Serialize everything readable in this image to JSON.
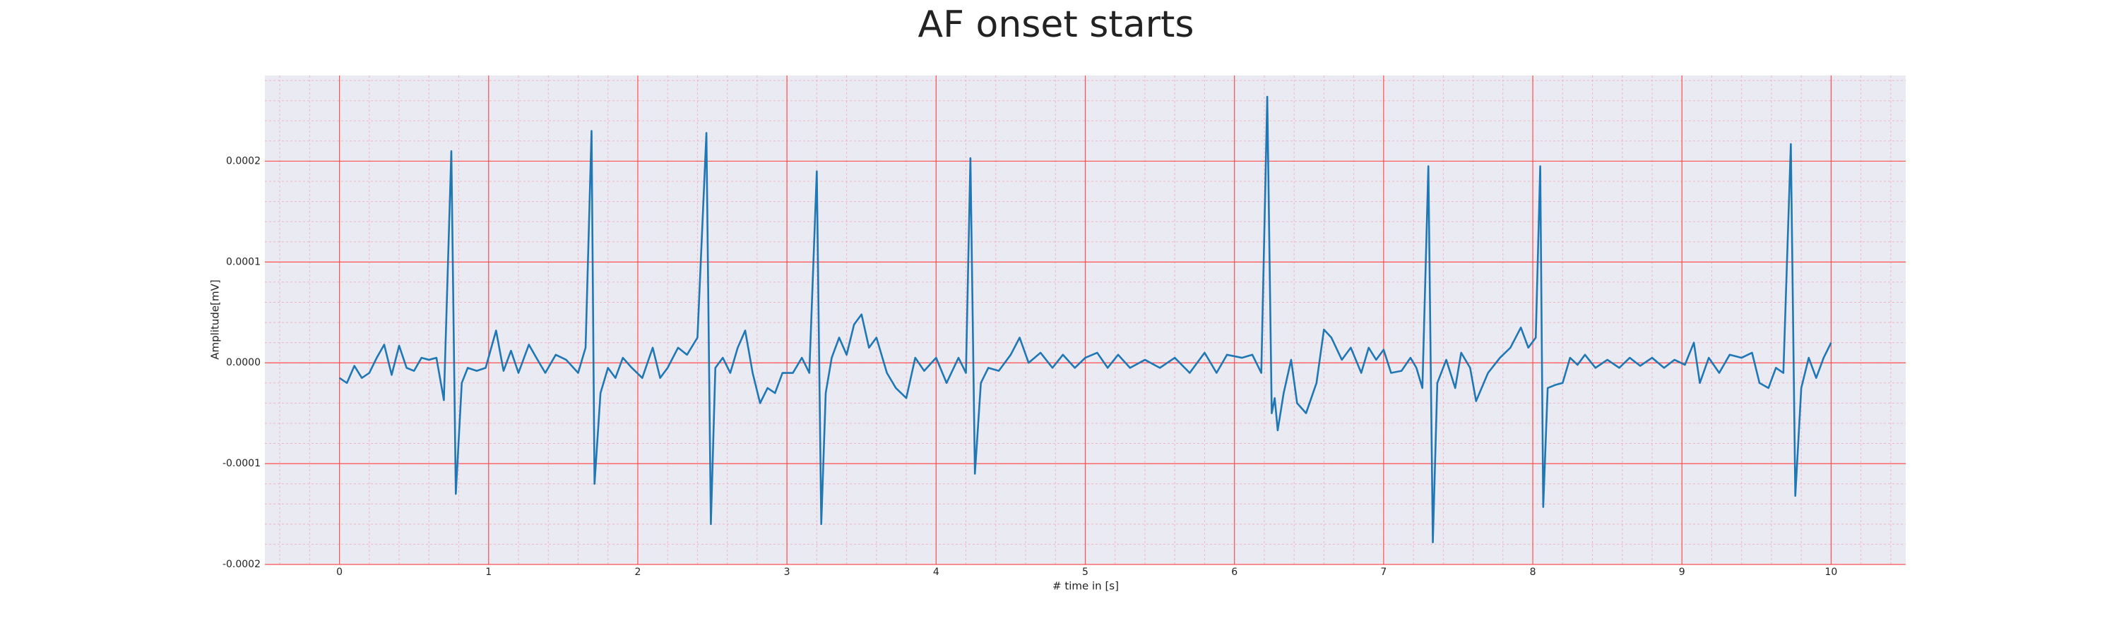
{
  "chart_data": {
    "type": "line",
    "title": "AF onset starts",
    "x_label": "# time in [s]",
    "y_label": "Amplitude[mV]",
    "color": "#1f77b4",
    "grid": true,
    "minor_grid": true,
    "xlim": [
      -0.5,
      10.5
    ],
    "ylim": [
      -0.0002,
      0.000285
    ],
    "xticks": [
      0,
      1,
      2,
      3,
      4,
      5,
      6,
      7,
      8,
      9,
      10
    ],
    "yticks": [
      -0.0002,
      -0.0001,
      {
        "value": 0,
        "label": "0.0000"
      },
      0.0001,
      0.0002
    ],
    "x": [
      0,
      0.05,
      0.1,
      0.15,
      0.2,
      0.25,
      0.3,
      0.35,
      0.4,
      0.45,
      0.5,
      0.55,
      0.6,
      0.65,
      0.7,
      0.75,
      0.78,
      0.82,
      0.86,
      0.92,
      0.98,
      1.05,
      1.1,
      1.15,
      1.2,
      1.27,
      1.32,
      1.38,
      1.45,
      1.52,
      1.6,
      1.65,
      1.69,
      1.71,
      1.75,
      1.8,
      1.85,
      1.9,
      1.96,
      2.03,
      2.1,
      2.15,
      2.2,
      2.27,
      2.33,
      2.4,
      2.46,
      2.49,
      2.52,
      2.57,
      2.62,
      2.67,
      2.72,
      2.77,
      2.82,
      2.87,
      2.92,
      2.97,
      3.04,
      3.1,
      3.15,
      3.2,
      3.23,
      3.26,
      3.3,
      3.35,
      3.4,
      3.45,
      3.5,
      3.55,
      3.6,
      3.67,
      3.73,
      3.8,
      3.86,
      3.92,
      4.0,
      4.07,
      4.15,
      4.2,
      4.23,
      4.26,
      4.3,
      4.35,
      4.42,
      4.5,
      4.56,
      4.62,
      4.7,
      4.78,
      4.85,
      4.93,
      5.0,
      5.08,
      5.15,
      5.22,
      5.3,
      5.4,
      5.5,
      5.6,
      5.7,
      5.8,
      5.88,
      5.95,
      6.05,
      6.12,
      6.18,
      6.22,
      6.25,
      6.27,
      6.29,
      6.33,
      6.38,
      6.42,
      6.48,
      6.55,
      6.6,
      6.65,
      6.72,
      6.78,
      6.85,
      6.9,
      6.95,
      7.0,
      7.05,
      7.12,
      7.18,
      7.22,
      7.26,
      7.3,
      7.33,
      7.36,
      7.42,
      7.48,
      7.52,
      7.58,
      7.62,
      7.7,
      7.78,
      7.85,
      7.92,
      7.97,
      8.02,
      8.05,
      8.07,
      8.1,
      8.15,
      8.2,
      8.25,
      8.3,
      8.35,
      8.42,
      8.5,
      8.58,
      8.65,
      8.72,
      8.8,
      8.88,
      8.95,
      9.02,
      9.08,
      9.12,
      9.18,
      9.25,
      9.32,
      9.4,
      9.47,
      9.52,
      9.58,
      9.63,
      9.68,
      9.73,
      9.76,
      9.8,
      9.85,
      9.9,
      9.95,
      10.0
    ],
    "values": [
      -1.5e-05,
      -2e-05,
      -3e-06,
      -1.5e-05,
      -1e-05,
      5e-06,
      1.8e-05,
      -1.2e-05,
      1.7e-05,
      -5e-06,
      -8e-06,
      5e-06,
      3e-06,
      5e-06,
      -3.7e-05,
      0.00021,
      -0.00013,
      -2e-05,
      -5e-06,
      -8e-06,
      -5e-06,
      3.2e-05,
      -8e-06,
      1.2e-05,
      -1e-05,
      1.8e-05,
      5e-06,
      -1e-05,
      8e-06,
      3e-06,
      -1e-05,
      1.5e-05,
      0.00023,
      -0.00012,
      -3e-05,
      -5e-06,
      -1.5e-05,
      5e-06,
      -5e-06,
      -1.5e-05,
      1.5e-05,
      -1.5e-05,
      -5e-06,
      1.5e-05,
      8e-06,
      2.5e-05,
      0.000228,
      -0.00016,
      -5e-06,
      5e-06,
      -1e-05,
      1.5e-05,
      3.2e-05,
      -1e-05,
      -4e-05,
      -2.5e-05,
      -3e-05,
      -1e-05,
      -1e-05,
      5e-06,
      -1e-05,
      0.00019,
      -0.00016,
      -3e-05,
      5e-06,
      2.5e-05,
      8e-06,
      3.8e-05,
      4.8e-05,
      1.5e-05,
      2.5e-05,
      -1e-05,
      -2.5e-05,
      -3.5e-05,
      5e-06,
      -8e-06,
      5e-06,
      -2e-05,
      5e-06,
      -1e-05,
      0.000203,
      -0.00011,
      -2e-05,
      -5e-06,
      -8e-06,
      8e-06,
      2.5e-05,
      0,
      1e-05,
      -5e-06,
      8e-06,
      -5e-06,
      5e-06,
      1e-05,
      -5e-06,
      8e-06,
      -5e-06,
      3e-06,
      -5e-06,
      5e-06,
      -1e-05,
      1e-05,
      -1e-05,
      8e-06,
      5e-06,
      8e-06,
      -1e-05,
      0.000264,
      -5e-05,
      -3.5e-05,
      -6.7e-05,
      -3e-05,
      3e-06,
      -4e-05,
      -5e-05,
      -2e-05,
      3.3e-05,
      2.5e-05,
      3e-06,
      1.5e-05,
      -1e-05,
      1.5e-05,
      3e-06,
      1.3e-05,
      -1e-05,
      -8e-06,
      5e-06,
      -5e-06,
      -2.5e-05,
      0.000195,
      -0.000178,
      -2e-05,
      3e-06,
      -2.5e-05,
      1e-05,
      -5e-06,
      -3.8e-05,
      -1e-05,
      5e-06,
      1.5e-05,
      3.5e-05,
      1.5e-05,
      2.5e-05,
      0.000195,
      -0.000143,
      -2.5e-05,
      -2.2e-05,
      -2e-05,
      5e-06,
      -2e-06,
      8e-06,
      -5e-06,
      3e-06,
      -5e-06,
      5e-06,
      -3e-06,
      5e-06,
      -5e-06,
      3e-06,
      -2e-06,
      2e-05,
      -2e-05,
      5e-06,
      -1e-05,
      8e-06,
      5e-06,
      1e-05,
      -2e-05,
      -2.5e-05,
      -5e-06,
      -1e-05,
      0.000217,
      -0.000132,
      -2.5e-05,
      5e-06,
      -1.5e-05,
      5e-06,
      2e-05
    ]
  }
}
